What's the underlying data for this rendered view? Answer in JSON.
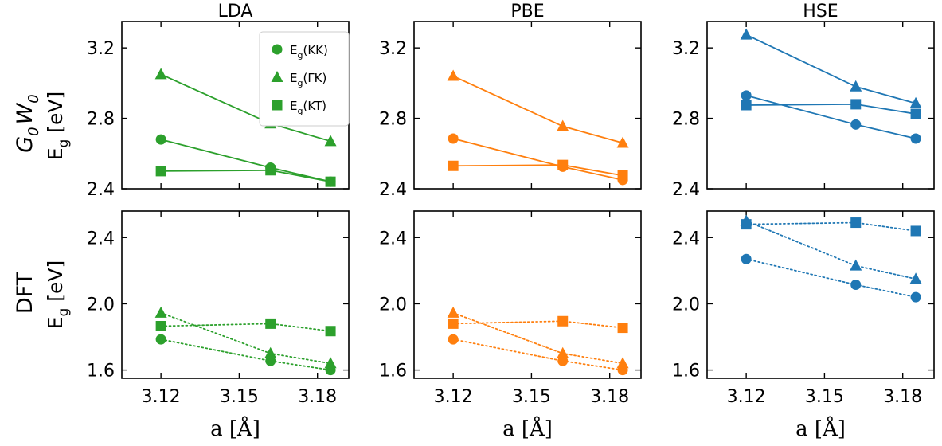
{
  "figure": {
    "row_labels": {
      "top_method": "G",
      "top_method_sub": "0",
      "top_method2": "W",
      "top_method2_sub": "0",
      "bottom_method": "DFT",
      "ylabel_main": "E",
      "ylabel_sub": "g",
      "ylabel_unit": " [eV]"
    },
    "xlabel_text": "a [Å]",
    "legend": {
      "entries": [
        {
          "main": "E",
          "sub": "g",
          "rest": "(KK)",
          "marker": "circle"
        },
        {
          "main": "E",
          "sub": "g",
          "rest": "(ΓK)",
          "marker": "triangle"
        },
        {
          "main": "E",
          "sub": "g",
          "rest": "(KT)",
          "marker": "square"
        }
      ]
    },
    "colors": {
      "LDA": "#2ca02c",
      "PBE": "#ff7f0e",
      "HSE": "#1f77b4"
    }
  },
  "chart_data": [
    {
      "type": "line",
      "title": "LDA",
      "ylabel": "E_g [eV]",
      "xlabel": "",
      "ylim": [
        2.4,
        3.35
      ],
      "yticks": [
        "2.4",
        "2.8",
        "3.2"
      ],
      "xlim": [
        3.105,
        3.192
      ],
      "xticks": [
        "3.12",
        "3.15",
        "3.18"
      ],
      "line_style": "solid",
      "x": [
        3.12,
        3.162,
        3.185
      ],
      "series": [
        {
          "name": "E_g(KK)",
          "marker": "circle",
          "values": [
            2.68,
            2.52,
            2.44
          ]
        },
        {
          "name": "E_g(ΓK)",
          "marker": "triangle",
          "values": [
            3.05,
            2.77,
            2.67
          ]
        },
        {
          "name": "E_g(KT)",
          "marker": "square",
          "values": [
            2.5,
            2.505,
            2.44
          ]
        }
      ]
    },
    {
      "type": "line",
      "title": "PBE",
      "ylabel": "",
      "xlabel": "",
      "ylim": [
        2.4,
        3.35
      ],
      "yticks": [
        "2.4",
        "2.8",
        "3.2"
      ],
      "xlim": [
        3.105,
        3.192
      ],
      "xticks": [
        "3.12",
        "3.15",
        "3.18"
      ],
      "line_style": "solid",
      "x": [
        3.12,
        3.162,
        3.185
      ],
      "series": [
        {
          "name": "E_g(KK)",
          "marker": "circle",
          "values": [
            2.685,
            2.525,
            2.45
          ]
        },
        {
          "name": "E_g(ΓK)",
          "marker": "triangle",
          "values": [
            3.04,
            2.755,
            2.66
          ]
        },
        {
          "name": "E_g(KT)",
          "marker": "square",
          "values": [
            2.53,
            2.535,
            2.475
          ]
        }
      ]
    },
    {
      "type": "line",
      "title": "HSE",
      "ylabel": "",
      "xlabel": "",
      "ylim": [
        2.4,
        3.35
      ],
      "yticks": [
        "2.4",
        "2.8",
        "3.2"
      ],
      "xlim": [
        3.105,
        3.192
      ],
      "xticks": [
        "3.12",
        "3.15",
        "3.18"
      ],
      "line_style": "solid",
      "x": [
        3.12,
        3.162,
        3.185
      ],
      "series": [
        {
          "name": "E_g(KK)",
          "marker": "circle",
          "values": [
            2.93,
            2.765,
            2.685
          ]
        },
        {
          "name": "E_g(ΓK)",
          "marker": "triangle",
          "values": [
            3.275,
            2.98,
            2.885
          ]
        },
        {
          "name": "E_g(KT)",
          "marker": "square",
          "values": [
            2.875,
            2.88,
            2.825
          ]
        }
      ]
    },
    {
      "type": "line",
      "title": "",
      "ylabel": "E_g [eV]",
      "xlabel": "a [Å]",
      "ylim": [
        1.55,
        2.56
      ],
      "yticks": [
        "1.6",
        "2.0",
        "2.4"
      ],
      "xlim": [
        3.105,
        3.192
      ],
      "xticks": [
        "3.12",
        "3.15",
        "3.18"
      ],
      "line_style": "dotted",
      "x": [
        3.12,
        3.162,
        3.185
      ],
      "series": [
        {
          "name": "E_g(KK)",
          "marker": "circle",
          "values": [
            1.785,
            1.655,
            1.6
          ]
        },
        {
          "name": "E_g(ΓK)",
          "marker": "triangle",
          "values": [
            1.945,
            1.7,
            1.64
          ]
        },
        {
          "name": "E_g(KT)",
          "marker": "square",
          "values": [
            1.865,
            1.88,
            1.835
          ]
        }
      ]
    },
    {
      "type": "line",
      "title": "",
      "ylabel": "",
      "xlabel": "a [Å]",
      "ylim": [
        1.55,
        2.56
      ],
      "yticks": [
        "1.6",
        "2.0",
        "2.4"
      ],
      "xlim": [
        3.105,
        3.192
      ],
      "xticks": [
        "3.12",
        "3.15",
        "3.18"
      ],
      "line_style": "dotted",
      "x": [
        3.12,
        3.162,
        3.185
      ],
      "series": [
        {
          "name": "E_g(KK)",
          "marker": "circle",
          "values": [
            1.785,
            1.655,
            1.6
          ]
        },
        {
          "name": "E_g(ΓK)",
          "marker": "triangle",
          "values": [
            1.945,
            1.7,
            1.64
          ]
        },
        {
          "name": "E_g(KT)",
          "marker": "square",
          "values": [
            1.88,
            1.895,
            1.855
          ]
        }
      ]
    },
    {
      "type": "line",
      "title": "",
      "ylabel": "",
      "xlabel": "a [Å]",
      "ylim": [
        1.55,
        2.56
      ],
      "yticks": [
        "1.6",
        "2.0",
        "2.4"
      ],
      "xlim": [
        3.105,
        3.192
      ],
      "xticks": [
        "3.12",
        "3.15",
        "3.18"
      ],
      "line_style": "dotted",
      "x": [
        3.12,
        3.162,
        3.185
      ],
      "series": [
        {
          "name": "E_g(KK)",
          "marker": "circle",
          "values": [
            2.27,
            2.115,
            2.04
          ]
        },
        {
          "name": "E_g(ΓK)",
          "marker": "triangle",
          "values": [
            2.5,
            2.23,
            2.15
          ]
        },
        {
          "name": "E_g(KT)",
          "marker": "square",
          "values": [
            2.48,
            2.49,
            2.44
          ]
        }
      ]
    }
  ]
}
